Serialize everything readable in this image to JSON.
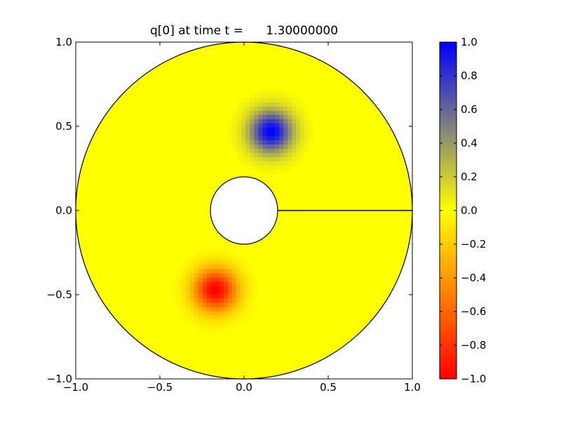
{
  "chart_data": {
    "type": "heatmap",
    "title": "q[0] at time t =      1.30000000",
    "xlabel": "",
    "ylabel": "",
    "xlim": [
      -1.0,
      1.0
    ],
    "ylim": [
      -1.0,
      1.0
    ],
    "grid": false,
    "x_ticks": [
      "−1.0",
      "−0.5",
      "0.0",
      "0.5",
      "1.0"
    ],
    "y_ticks": [
      "−1.0",
      "−0.5",
      "0.0",
      "0.5",
      "1.0"
    ],
    "x_tick_values": [
      -1.0,
      -0.5,
      0.0,
      0.5,
      1.0
    ],
    "y_tick_values": [
      -1.0,
      -0.5,
      0.0,
      0.5,
      1.0
    ],
    "domain": {
      "shape": "annulus",
      "inner_radius": 0.2,
      "outer_radius": 1.0,
      "cut_line": {
        "from": [
          0.2,
          0.0
        ],
        "to": [
          1.0,
          0.0
        ]
      }
    },
    "background_value": 0.0,
    "features": [
      {
        "name": "positive",
        "center": [
          0.16,
          0.47
        ],
        "peak": 1.0,
        "spread": 0.09
      },
      {
        "name": "negative",
        "center": [
          -0.17,
          -0.47
        ],
        "peak": -1.0,
        "spread": 0.09
      }
    ],
    "colorbar": {
      "range": [
        -1.0,
        1.0
      ],
      "ticks": [
        "1.0",
        "0.8",
        "0.6",
        "0.4",
        "0.2",
        "0.0",
        "−0.2",
        "−0.4",
        "−0.6",
        "−0.8",
        "−1.0"
      ],
      "tick_values": [
        1.0,
        0.8,
        0.6,
        0.4,
        0.2,
        0.0,
        -0.2,
        -0.4,
        -0.6,
        -0.8,
        -1.0
      ],
      "color_stops": [
        {
          "value": -1.0,
          "color": "#ff0000"
        },
        {
          "value": 0.0,
          "color": "#ffff00"
        },
        {
          "value": 1.0,
          "color": "#0000ff"
        }
      ]
    }
  }
}
